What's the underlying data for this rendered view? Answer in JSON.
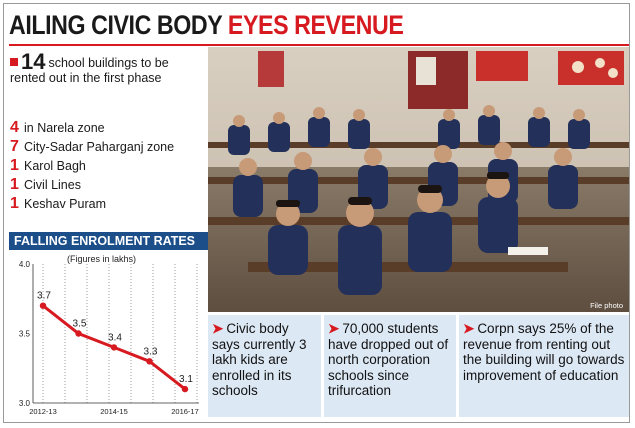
{
  "headline": {
    "part1": "AILING CIVIC BODY",
    "part2": "EYES REVENUE"
  },
  "lead": {
    "count": "14",
    "text": "school buildings to be rented out in the first phase"
  },
  "zones": [
    {
      "num": "4",
      "label": "in Narela zone"
    },
    {
      "num": "7",
      "label": "City-Sadar Paharganj zone"
    },
    {
      "num": "1",
      "label": "Karol Bagh"
    },
    {
      "num": "1",
      "label": "Civil Lines"
    },
    {
      "num": "1",
      "label": "Keshav Puram"
    }
  ],
  "chart_header": "FALLING ENROLMENT RATES",
  "chart_data": {
    "type": "line",
    "title": "FALLING ENROLMENT RATES",
    "subtitle": "(Figures in lakhs)",
    "x_tick_labels": [
      "2012-13",
      "2014-15",
      "2016-17"
    ],
    "series": [
      {
        "values": [
          3.7,
          3.5,
          3.4,
          3.3,
          3.1
        ]
      }
    ],
    "data_labels": [
      "3.7",
      "3.5",
      "3.4",
      "3.3",
      "3.1"
    ],
    "y_tick_labels": [
      "4.0",
      "3.5",
      "3.0"
    ],
    "ylim": [
      3.0,
      4.0
    ],
    "line_color": "#d71920",
    "grid": "vertical dotted"
  },
  "photo": {
    "credit": "File photo"
  },
  "facts": [
    "Civic body says currently 3 lakh kids are enrolled in its schools",
    "70,000 students have dropped out of north corporation schools since trifurcation",
    "Corpn says 25% of the revenue from renting out the building will go towards improvement of education"
  ],
  "colors": {
    "accent_red": "#d71920",
    "header_blue": "#1c4f8a",
    "fact_bg": "#dde8f5"
  }
}
